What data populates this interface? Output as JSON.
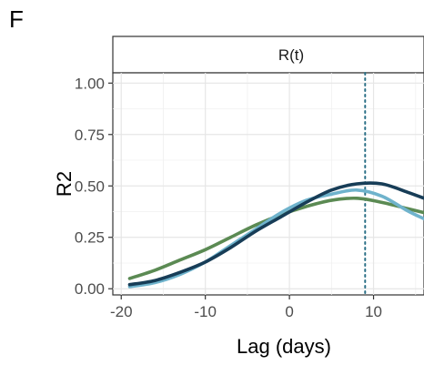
{
  "panel_label": "F",
  "chart_data": {
    "type": "line",
    "facet_label": "R(t)",
    "xlabel": "Lag (days)",
    "ylabel": "R2",
    "xlim": [
      -21,
      16
    ],
    "ylim": [
      -0.03,
      1.05
    ],
    "x_ticks": [
      -20,
      -10,
      0,
      10
    ],
    "x_tick_labels": [
      "-20",
      "-10",
      "0",
      "10"
    ],
    "y_ticks": [
      0.0,
      0.25,
      0.5,
      0.75,
      1.0
    ],
    "y_tick_labels": [
      "0.00",
      "0.25",
      "0.50",
      "0.75",
      "1.00"
    ],
    "grid": true,
    "vline": {
      "x": 9,
      "style": "dotted",
      "color": "#2a6f86"
    },
    "series": [
      {
        "color": "#5b8a53",
        "x": [
          -19,
          -16,
          -13,
          -10,
          -7,
          -4,
          -1,
          2,
          5,
          8,
          11,
          14,
          16
        ],
        "y": [
          0.05,
          0.09,
          0.14,
          0.19,
          0.25,
          0.31,
          0.36,
          0.4,
          0.43,
          0.44,
          0.42,
          0.39,
          0.37
        ]
      },
      {
        "color": "#6fb3cc",
        "x": [
          -19,
          -16,
          -13,
          -10,
          -7,
          -4,
          -1,
          2,
          5,
          8,
          11,
          14,
          16
        ],
        "y": [
          0.01,
          0.03,
          0.07,
          0.13,
          0.21,
          0.29,
          0.37,
          0.43,
          0.46,
          0.48,
          0.45,
          0.38,
          0.34
        ]
      },
      {
        "color": "#173d57",
        "x": [
          -19,
          -16,
          -13,
          -10,
          -7,
          -4,
          -1,
          2,
          5,
          8,
          11,
          14,
          16
        ],
        "y": [
          0.02,
          0.04,
          0.08,
          0.13,
          0.2,
          0.28,
          0.35,
          0.42,
          0.48,
          0.51,
          0.51,
          0.47,
          0.44
        ]
      }
    ]
  }
}
